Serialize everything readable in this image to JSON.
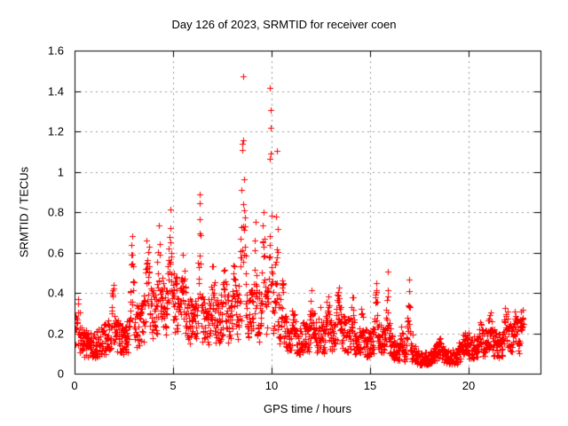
{
  "chart_data": {
    "type": "scatter",
    "title": "Day 126 of 2023, SRMTID for receiver coen",
    "xlabel": "GPS time / hours",
    "ylabel": "SRMTID / TECUs",
    "xlim": [
      0,
      23.65
    ],
    "ylim": [
      0,
      1.6
    ],
    "x_ticks": [
      0,
      5,
      10,
      15,
      20
    ],
    "x_tick_labels": [
      "0",
      "5",
      "10",
      "15",
      "20"
    ],
    "y_ticks": [
      0,
      0.2,
      0.4,
      0.6,
      0.8,
      1,
      1.2,
      1.4,
      1.6
    ],
    "y_tick_labels": [
      "0",
      "0.2",
      "0.4",
      "0.6",
      "0.8",
      "1",
      "1.2",
      "1.4",
      "1.6"
    ],
    "grid": {
      "visible": true,
      "style": "dotted",
      "color": "#999999"
    },
    "border_color": "#000000",
    "marker": {
      "shape": "plus",
      "size": 7,
      "color": "#ff0000"
    },
    "series_name": "SRMTID",
    "sampling": {
      "t_start": 0.02,
      "t_end": 22.78,
      "step_hours": 0.0333,
      "tracks": 3,
      "seed": 126
    },
    "value_clamp": [
      0.02,
      1.5
    ],
    "baseline_profile": [
      [
        0,
        0.18
      ],
      [
        0.5,
        0.15
      ],
      [
        1,
        0.14
      ],
      [
        1.5,
        0.17
      ],
      [
        2,
        0.2
      ],
      [
        2.5,
        0.16
      ],
      [
        3,
        0.22
      ],
      [
        3.5,
        0.25
      ],
      [
        4,
        0.3
      ],
      [
        4.5,
        0.33
      ],
      [
        5,
        0.35
      ],
      [
        5.5,
        0.3
      ],
      [
        6,
        0.25
      ],
      [
        6.5,
        0.27
      ],
      [
        7,
        0.25
      ],
      [
        7.5,
        0.27
      ],
      [
        8,
        0.27
      ],
      [
        8.5,
        0.33
      ],
      [
        9,
        0.29
      ],
      [
        9.5,
        0.28
      ],
      [
        10,
        0.3
      ],
      [
        10.5,
        0.22
      ],
      [
        11,
        0.16
      ],
      [
        11.5,
        0.17
      ],
      [
        12,
        0.2
      ],
      [
        12.5,
        0.17
      ],
      [
        13,
        0.19
      ],
      [
        13.5,
        0.21
      ],
      [
        14,
        0.19
      ],
      [
        14.5,
        0.15
      ],
      [
        15,
        0.15
      ],
      [
        15.5,
        0.17
      ],
      [
        16,
        0.14
      ],
      [
        16.5,
        0.1
      ],
      [
        17,
        0.11
      ],
      [
        17.5,
        0.07
      ],
      [
        18,
        0.08
      ],
      [
        18.5,
        0.1
      ],
      [
        19,
        0.08
      ],
      [
        19.5,
        0.09
      ],
      [
        20,
        0.12
      ],
      [
        20.5,
        0.14
      ],
      [
        21,
        0.16
      ],
      [
        21.5,
        0.14
      ],
      [
        22,
        0.17
      ],
      [
        22.5,
        0.17
      ],
      [
        22.8,
        0.19
      ]
    ],
    "spikes": [
      [
        0.15,
        0.13,
        0.1
      ],
      [
        1.95,
        0.25,
        0.06
      ],
      [
        2.9,
        0.42,
        0.08
      ],
      [
        3.7,
        0.41,
        0.09
      ],
      [
        4.3,
        0.29,
        0.07
      ],
      [
        4.85,
        0.41,
        0.07
      ],
      [
        5.5,
        0.24,
        0.08
      ],
      [
        6.35,
        0.66,
        0.05
      ],
      [
        7.0,
        0.27,
        0.06
      ],
      [
        7.6,
        0.33,
        0.06
      ],
      [
        8.1,
        0.27,
        0.05
      ],
      [
        8.55,
        1.0,
        0.07
      ],
      [
        9.15,
        0.4,
        0.05
      ],
      [
        9.6,
        0.5,
        0.05
      ],
      [
        9.95,
        1.07,
        0.055
      ],
      [
        10.25,
        0.82,
        0.045
      ],
      [
        10.55,
        0.3,
        0.05
      ],
      [
        11.1,
        0.2,
        0.06
      ],
      [
        12.05,
        0.2,
        0.06
      ],
      [
        12.5,
        0.12,
        0.06
      ],
      [
        12.85,
        0.25,
        0.05
      ],
      [
        13.4,
        0.18,
        0.07
      ],
      [
        14.1,
        0.25,
        0.05
      ],
      [
        14.6,
        0.15,
        0.06
      ],
      [
        15.3,
        0.27,
        0.05
      ],
      [
        15.9,
        0.34,
        0.05
      ],
      [
        16.6,
        0.15,
        0.05
      ],
      [
        16.95,
        0.43,
        0.05
      ],
      [
        18.5,
        0.08,
        0.1
      ],
      [
        19.8,
        0.08,
        0.1
      ],
      [
        20.6,
        0.1,
        0.08
      ],
      [
        21.1,
        0.12,
        0.08
      ],
      [
        21.9,
        0.12,
        0.08
      ],
      [
        22.4,
        0.12,
        0.06
      ],
      [
        22.7,
        0.08,
        0.05
      ]
    ],
    "notable_peaks": [
      {
        "hour": 9.95,
        "value": 1.47
      },
      {
        "hour": 8.55,
        "value": 1.42
      },
      {
        "hour": 6.35,
        "value": 0.98
      },
      {
        "hour": 4.85,
        "value": 0.78
      },
      {
        "hour": 16.95,
        "value": 0.58
      },
      {
        "hour": 14.1,
        "value": 0.47
      }
    ]
  }
}
